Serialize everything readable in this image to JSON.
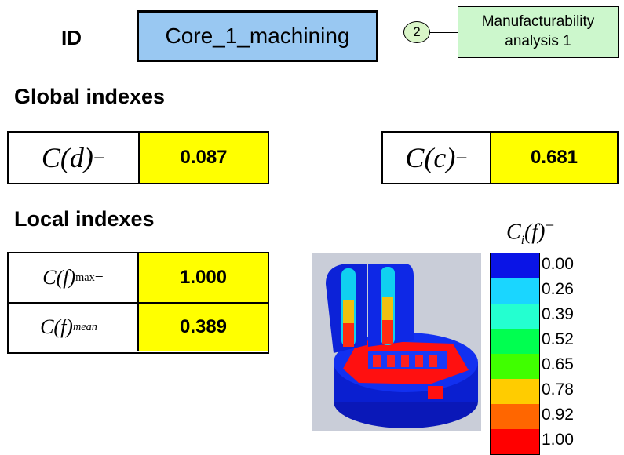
{
  "header": {
    "id_label": "ID",
    "id_value": "Core_1_machining",
    "step_number": "2",
    "analysis_line1": "Manufacturability",
    "analysis_line2": "analysis 1"
  },
  "global": {
    "title": "Global indexes",
    "indexes": [
      {
        "symbol_var": "d",
        "value": "0.087"
      },
      {
        "symbol_var": "c",
        "value": "0.681"
      }
    ]
  },
  "local": {
    "title": "Local indexes",
    "indexes": [
      {
        "symbol_var": "f",
        "subscript": "max",
        "value": "1.000"
      },
      {
        "symbol_var": "f",
        "subscript": "mean",
        "value": "0.389"
      }
    ]
  },
  "legend": {
    "title_base": "C",
    "title_sub": "i",
    "title_var": "f",
    "items": [
      {
        "label": "0.00",
        "color": "#0a14e6"
      },
      {
        "label": "0.26",
        "color": "#1ad6ff"
      },
      {
        "label": "0.39",
        "color": "#24ffd0"
      },
      {
        "label": "0.52",
        "color": "#00ff50"
      },
      {
        "label": "0.65",
        "color": "#40ff00"
      },
      {
        "label": "0.78",
        "color": "#ffcc00"
      },
      {
        "label": "0.92",
        "color": "#ff6600"
      },
      {
        "label": "1.00",
        "color": "#ff0000"
      }
    ]
  }
}
